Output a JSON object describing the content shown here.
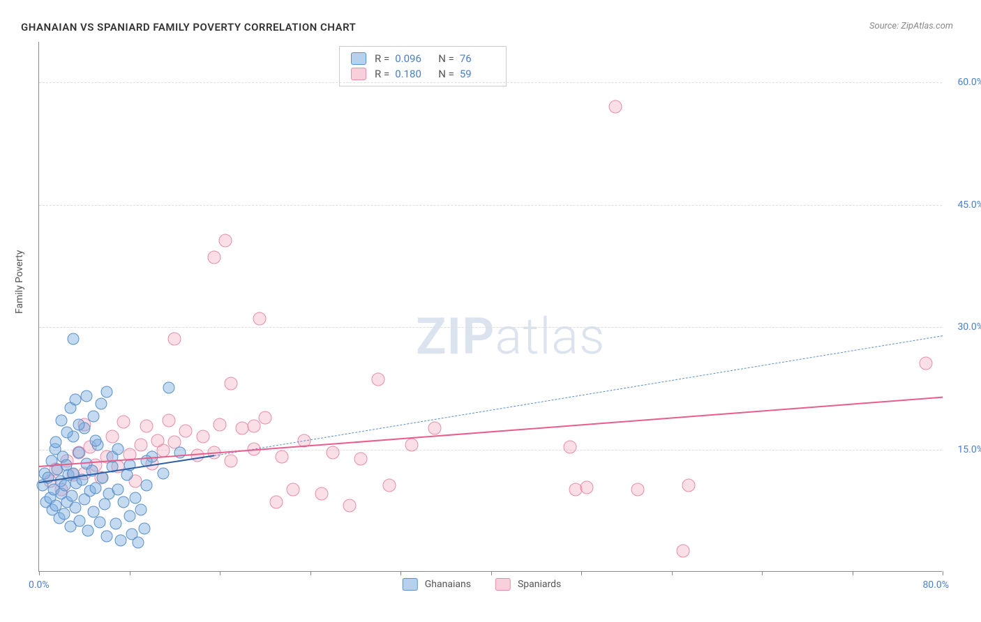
{
  "title": "GHANAIAN VS SPANIARD FAMILY POVERTY CORRELATION CHART",
  "source": "Source: ZipAtlas.com",
  "y_axis_label": "Family Poverty",
  "watermark_bold": "ZIP",
  "watermark_light": "atlas",
  "chart": {
    "type": "scatter",
    "xlim": [
      0,
      80
    ],
    "ylim": [
      0,
      65
    ],
    "x_origin_label": "0.0%",
    "x_max_label": "80.0%",
    "x_ticks": [
      0,
      8,
      16,
      24,
      32,
      40,
      48,
      56,
      64,
      72,
      80
    ],
    "y_gridlines": [
      {
        "value": 15,
        "label": "15.0%"
      },
      {
        "value": 30,
        "label": "30.0%"
      },
      {
        "value": 45,
        "label": "45.0%"
      },
      {
        "value": 60,
        "label": "60.0%"
      }
    ],
    "background_color": "#ffffff",
    "grid_color": "#dddddd",
    "axis_color": "#888888",
    "tick_label_color": "#4a7fc9"
  },
  "legend_top": {
    "rows": [
      {
        "swatch": "blue",
        "r_label": "R =",
        "r_val": "0.096",
        "n_label": "N =",
        "n_val": "76"
      },
      {
        "swatch": "pink",
        "r_label": "R =",
        "r_val": "0.180",
        "n_label": "N =",
        "n_val": "59"
      }
    ]
  },
  "legend_bottom": {
    "items": [
      {
        "swatch": "blue",
        "label": "Ghanaians"
      },
      {
        "swatch": "pink",
        "label": "Spaniards"
      }
    ]
  },
  "series": {
    "ghanaians": {
      "color_fill": "rgba(122,172,224,0.45)",
      "color_stroke": "#5a8fc9",
      "marker_size": 17,
      "trend": {
        "x1": 0,
        "y1": 11.0,
        "x2": 15.5,
        "y2": 14.3,
        "color": "#2e5fa3",
        "width": 2.5,
        "dash": "solid"
      },
      "trend_ext": {
        "x1": 15.5,
        "y1": 14.3,
        "x2": 80,
        "y2": 29.0,
        "color": "#5a8fc9",
        "width": 1.5,
        "dash": "dashed"
      },
      "points": [
        [
          0.3,
          10.5
        ],
        [
          0.5,
          12.0
        ],
        [
          0.6,
          8.5
        ],
        [
          0.8,
          11.5
        ],
        [
          1.0,
          9.0
        ],
        [
          1.1,
          13.5
        ],
        [
          1.2,
          7.5
        ],
        [
          1.3,
          10.0
        ],
        [
          1.4,
          15.0
        ],
        [
          1.5,
          8.0
        ],
        [
          1.6,
          12.5
        ],
        [
          1.8,
          6.5
        ],
        [
          1.9,
          11.0
        ],
        [
          2.0,
          9.5
        ],
        [
          2.1,
          14.0
        ],
        [
          2.2,
          7.0
        ],
        [
          2.3,
          10.5
        ],
        [
          2.4,
          13.0
        ],
        [
          2.5,
          8.5
        ],
        [
          2.6,
          11.8
        ],
        [
          2.8,
          5.5
        ],
        [
          2.9,
          9.2
        ],
        [
          3.0,
          12.0
        ],
        [
          3.2,
          7.8
        ],
        [
          3.3,
          10.8
        ],
        [
          3.5,
          14.5
        ],
        [
          3.6,
          6.2
        ],
        [
          3.8,
          11.2
        ],
        [
          4.0,
          8.8
        ],
        [
          4.2,
          13.2
        ],
        [
          4.3,
          5.0
        ],
        [
          4.5,
          9.8
        ],
        [
          4.7,
          12.3
        ],
        [
          4.8,
          7.3
        ],
        [
          5.0,
          10.2
        ],
        [
          5.2,
          15.5
        ],
        [
          5.4,
          6.0
        ],
        [
          5.6,
          11.5
        ],
        [
          5.8,
          8.2
        ],
        [
          6.0,
          4.3
        ],
        [
          6.2,
          9.5
        ],
        [
          6.5,
          12.8
        ],
        [
          6.8,
          5.8
        ],
        [
          7.0,
          10.0
        ],
        [
          7.2,
          3.8
        ],
        [
          7.5,
          8.5
        ],
        [
          7.8,
          11.8
        ],
        [
          8.0,
          6.8
        ],
        [
          8.2,
          4.5
        ],
        [
          8.5,
          9.0
        ],
        [
          8.8,
          3.5
        ],
        [
          9.0,
          7.5
        ],
        [
          9.3,
          5.2
        ],
        [
          9.5,
          10.5
        ],
        [
          2.0,
          18.5
        ],
        [
          2.8,
          20.0
        ],
        [
          3.2,
          21.0
        ],
        [
          4.2,
          21.5
        ],
        [
          4.8,
          19.0
        ],
        [
          5.5,
          20.5
        ],
        [
          6.0,
          22.0
        ],
        [
          3.0,
          16.5
        ],
        [
          4.0,
          17.5
        ],
        [
          5.0,
          16.0
        ],
        [
          1.5,
          15.8
        ],
        [
          2.5,
          17.0
        ],
        [
          3.5,
          18.0
        ],
        [
          6.5,
          14.0
        ],
        [
          7.0,
          15.0
        ],
        [
          8.0,
          13.0
        ],
        [
          3.0,
          28.5
        ],
        [
          11.5,
          22.5
        ],
        [
          12.5,
          14.5
        ],
        [
          10.0,
          14.0
        ],
        [
          9.5,
          13.5
        ],
        [
          11.0,
          12.0
        ]
      ]
    },
    "spaniards": {
      "color_fill": "rgba(240,150,175,0.3)",
      "color_stroke": "#e98ca8",
      "marker_size": 19,
      "trend": {
        "x1": 0,
        "y1": 13.0,
        "x2": 80,
        "y2": 21.5,
        "color": "#e85d8c",
        "width": 2.5,
        "dash": "solid"
      },
      "points": [
        [
          1.0,
          11.0
        ],
        [
          1.5,
          12.5
        ],
        [
          2.0,
          10.0
        ],
        [
          2.5,
          13.5
        ],
        [
          3.0,
          11.8
        ],
        [
          3.5,
          14.5
        ],
        [
          4.0,
          12.0
        ],
        [
          4.5,
          15.2
        ],
        [
          5.0,
          13.0
        ],
        [
          5.5,
          11.5
        ],
        [
          6.0,
          14.0
        ],
        [
          6.5,
          16.5
        ],
        [
          7.0,
          12.8
        ],
        [
          7.5,
          18.3
        ],
        [
          8.0,
          14.3
        ],
        [
          8.5,
          11.0
        ],
        [
          9.0,
          15.5
        ],
        [
          9.5,
          17.8
        ],
        [
          10.0,
          13.2
        ],
        [
          10.5,
          16.0
        ],
        [
          11.0,
          14.8
        ],
        [
          11.5,
          18.5
        ],
        [
          12.0,
          15.8
        ],
        [
          13.0,
          17.2
        ],
        [
          14.0,
          14.2
        ],
        [
          14.5,
          16.5
        ],
        [
          15.5,
          14.5
        ],
        [
          16.0,
          18.0
        ],
        [
          17.0,
          13.5
        ],
        [
          18.0,
          17.5
        ],
        [
          19.0,
          15.0
        ],
        [
          20.0,
          18.8
        ],
        [
          21.0,
          8.5
        ],
        [
          21.5,
          14.0
        ],
        [
          22.5,
          10.0
        ],
        [
          23.5,
          16.0
        ],
        [
          25.0,
          9.5
        ],
        [
          26.0,
          14.5
        ],
        [
          27.5,
          8.0
        ],
        [
          28.5,
          13.8
        ],
        [
          30.0,
          23.5
        ],
        [
          31.0,
          10.5
        ],
        [
          33.0,
          15.5
        ],
        [
          35.0,
          17.5
        ],
        [
          47.0,
          15.2
        ],
        [
          47.5,
          10.0
        ],
        [
          48.5,
          10.3
        ],
        [
          53.0,
          10.0
        ],
        [
          57.0,
          2.5
        ],
        [
          57.5,
          10.5
        ],
        [
          12.0,
          28.5
        ],
        [
          15.5,
          38.5
        ],
        [
          16.5,
          40.5
        ],
        [
          17.0,
          23.0
        ],
        [
          19.0,
          17.8
        ],
        [
          19.5,
          31.0
        ],
        [
          51.0,
          57.0
        ],
        [
          78.5,
          25.5
        ],
        [
          4.0,
          18.0
        ]
      ]
    }
  }
}
